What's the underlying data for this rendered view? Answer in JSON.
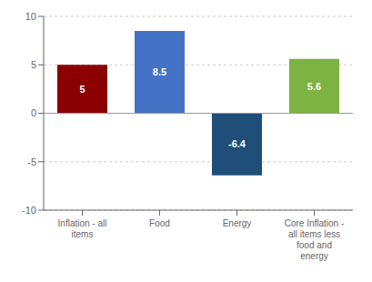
{
  "chart_data": {
    "type": "bar",
    "categories": [
      "Inflation - all\nitems",
      "Food",
      "Energy",
      "Core Inflation -\nall items less\nfood and\nenergy"
    ],
    "values": [
      5,
      8.5,
      -6.4,
      5.6
    ],
    "colors": [
      "#8B0000",
      "#4472C4",
      "#1F4E79",
      "#7CB341"
    ],
    "ylim": [
      -10,
      10
    ],
    "yticks": [
      -10,
      -5,
      0,
      5,
      10
    ],
    "grid": true,
    "data_labels": true
  }
}
